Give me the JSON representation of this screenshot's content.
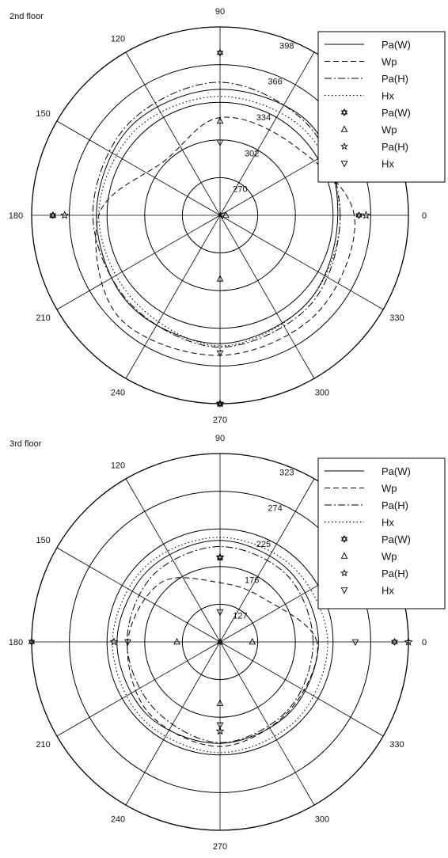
{
  "figure": {
    "panels": [
      {
        "floor_label": "2nd floor",
        "ring_labels": [
          "270",
          "302",
          "334",
          "366",
          "398"
        ],
        "angle_labels": [
          "0",
          "30",
          "60",
          "90",
          "120",
          "150",
          "180",
          "210",
          "240",
          "270",
          "300",
          "330"
        ],
        "legend": {
          "lines": [
            {
              "label": "Pa(W)",
              "style": "solid"
            },
            {
              "label": "Wp",
              "style": "dashed"
            },
            {
              "label": "Pa(H)",
              "style": "dashdot"
            },
            {
              "label": "Hx",
              "style": "dotted"
            }
          ],
          "markers": [
            {
              "label": "Pa(W)",
              "symbol": "hexagram"
            },
            {
              "label": "Wp",
              "symbol": "triangle-up"
            },
            {
              "label": "Pa(H)",
              "symbol": "pentagram"
            },
            {
              "label": "Hx",
              "symbol": "triangle-down"
            }
          ]
        }
      },
      {
        "floor_label": "3rd floor",
        "ring_labels": [
          "127",
          "176",
          "225",
          "274",
          "323"
        ],
        "angle_labels": [
          "0",
          "30",
          "60",
          "90",
          "120",
          "150",
          "180",
          "210",
          "240",
          "270",
          "300",
          "330"
        ],
        "legend": {
          "lines": [
            {
              "label": "Pa(W)",
              "style": "solid"
            },
            {
              "label": "Wp",
              "style": "dashed"
            },
            {
              "label": "Pa(H)",
              "style": "dashdot"
            },
            {
              "label": "Hx",
              "style": "dotted"
            }
          ],
          "markers": [
            {
              "label": "Pa(W)",
              "symbol": "hexagram"
            },
            {
              "label": "Wp",
              "symbol": "triangle-up"
            },
            {
              "label": "Pa(H)",
              "symbol": "pentagram"
            },
            {
              "label": "Hx",
              "symbol": "triangle-down"
            }
          ]
        }
      }
    ]
  },
  "chart_data": [
    {
      "type": "polar",
      "title": "2nd floor",
      "theta_unit": "degrees",
      "r_range": [
        238,
        398
      ],
      "r_ticks": [
        270,
        302,
        334,
        366,
        398
      ],
      "grid": true,
      "legend_position": "top-right",
      "curves": [
        {
          "name": "Pa(W)",
          "style": "solid",
          "theta": [
            0,
            45,
            90,
            135,
            180,
            225,
            270,
            315
          ],
          "r": [
            338,
            347,
            345,
            345,
            343,
            346,
            347,
            343
          ]
        },
        {
          "name": "Wp",
          "style": "dashed",
          "theta": [
            0,
            45,
            90,
            135,
            180,
            225,
            270,
            315
          ],
          "r": [
            352,
            324,
            321,
            304,
            341,
            360,
            357,
            355
          ]
        },
        {
          "name": "Pa(H)",
          "style": "dashdot",
          "theta": [
            0,
            45,
            90,
            135,
            180,
            225,
            270,
            315
          ],
          "r": [
            340,
            345,
            351,
            348,
            346,
            345,
            350,
            346
          ]
        },
        {
          "name": "Hx",
          "style": "dotted",
          "theta": [
            0,
            45,
            90,
            135,
            180,
            225,
            270,
            315
          ],
          "r": [
            340,
            340,
            339,
            340,
            341,
            341,
            349,
            343
          ]
        }
      ],
      "markers": [
        {
          "name": "Pa(W)",
          "symbol": "hexagram",
          "theta": [
            90,
            0,
            180,
            270
          ],
          "r": [
            376,
            356,
            380,
            398
          ]
        },
        {
          "name": "Wp",
          "symbol": "triangle-up",
          "theta": [
            90,
            180,
            270,
            0
          ],
          "r": [
            318,
            380,
            292,
            243
          ]
        },
        {
          "name": "Pa(H)",
          "symbol": "pentagram",
          "theta": [
            0,
            180,
            270
          ],
          "r": [
            362,
            370,
            398
          ]
        },
        {
          "name": "Hx",
          "symbol": "triangle-down",
          "theta": [
            90,
            270,
            0
          ],
          "r": [
            300,
            355,
            240
          ]
        }
      ]
    },
    {
      "type": "polar",
      "title": "3rd floor",
      "theta_unit": "degrees",
      "r_range": [
        78,
        323
      ],
      "r_ticks": [
        127,
        176,
        225,
        274,
        323
      ],
      "grid": true,
      "legend_position": "top-right",
      "curves": [
        {
          "name": "Pa(W)",
          "style": "solid",
          "theta": [
            0,
            45,
            90,
            135,
            180,
            225,
            270,
            315
          ],
          "r": [
            206,
            207,
            210,
            210,
            212,
            212,
            210,
            207
          ]
        },
        {
          "name": "Wp",
          "style": "dashed",
          "theta": [
            0,
            45,
            90,
            135,
            180,
            225,
            270,
            315
          ],
          "r": [
            204,
            158,
            155,
            187,
            198,
            209,
            214,
            205
          ]
        },
        {
          "name": "Pa(H)",
          "style": "dashdot",
          "theta": [
            0,
            45,
            90,
            135,
            180,
            225,
            270,
            315
          ],
          "r": [
            199,
            201,
            202,
            201,
            199,
            200,
            209,
            203
          ]
        },
        {
          "name": "Hx",
          "style": "dotted",
          "theta": [
            0,
            45,
            90,
            135,
            180,
            225,
            270,
            315
          ],
          "r": [
            218,
            214,
            214,
            216,
            218,
            220,
            222,
            220
          ]
        }
      ],
      "markers": [
        {
          "name": "Pa(W)",
          "symbol": "hexagram",
          "theta": [
            90,
            0,
            180
          ],
          "r": [
            188,
            305,
            323
          ]
        },
        {
          "name": "Wp",
          "symbol": "triangle-up",
          "theta": [
            0,
            180,
            90,
            270
          ],
          "r": [
            120,
            134,
            78,
            158
          ]
        },
        {
          "name": "Pa(H)",
          "symbol": "pentagram",
          "theta": [
            90,
            0,
            180,
            270
          ],
          "r": [
            188,
            323,
            216,
            194
          ]
        },
        {
          "name": "Hx",
          "symbol": "triangle-down",
          "theta": [
            0,
            180,
            90,
            270
          ],
          "r": [
            254,
            198,
            117,
            186
          ]
        }
      ]
    }
  ]
}
